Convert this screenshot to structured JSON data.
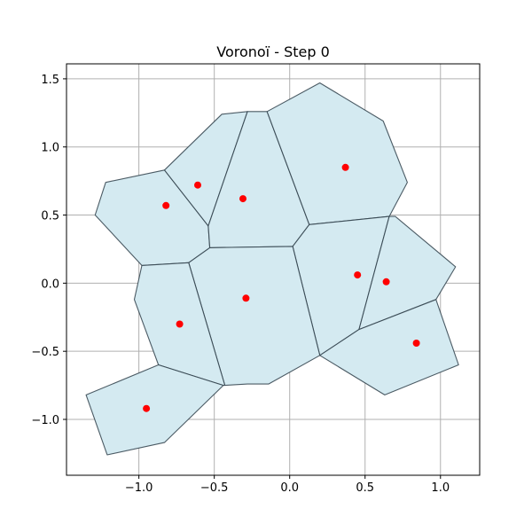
{
  "chart_data": {
    "type": "voronoi",
    "title": "Voronoï - Step 0",
    "xlabel": "",
    "ylabel": "",
    "xlim": [
      -1.48,
      1.26
    ],
    "ylim": [
      -1.41,
      1.61
    ],
    "xticks": [
      -1.0,
      -0.5,
      0.0,
      0.5,
      1.0
    ],
    "yticks": [
      -1.0,
      -0.5,
      0.0,
      0.5,
      1.0,
      1.5
    ],
    "xtick_labels": [
      "−1.0",
      "−0.5",
      "0.0",
      "0.5",
      "1.0"
    ],
    "ytick_labels": [
      "−1.0",
      "−0.5",
      "0.0",
      "0.5",
      "1.0",
      "1.5"
    ],
    "grid": true,
    "colors": {
      "cell_fill": "#d4eaf1",
      "cell_edge": "#2f3f4a",
      "outer_edge": "#6f7a80",
      "point": "#ff0000",
      "grid": "#b0b0b0",
      "axes": "#000000"
    },
    "points": [
      [
        -0.82,
        0.57
      ],
      [
        -0.61,
        0.72
      ],
      [
        -0.31,
        0.62
      ],
      [
        0.37,
        0.85
      ],
      [
        0.45,
        0.06
      ],
      [
        0.64,
        0.01
      ],
      [
        -0.29,
        -0.11
      ],
      [
        -0.73,
        -0.3
      ],
      [
        0.84,
        -0.44
      ],
      [
        -0.95,
        -0.92
      ]
    ],
    "cells": [
      [
        [
          -0.83,
          0.83
        ],
        [
          -1.22,
          0.74
        ],
        [
          -1.29,
          0.5
        ],
        [
          -0.98,
          0.13
        ],
        [
          -0.67,
          0.15
        ],
        [
          -0.53,
          0.26
        ],
        [
          -0.54,
          0.42
        ]
      ],
      [
        [
          -0.83,
          0.83
        ],
        [
          -0.54,
          0.42
        ],
        [
          -0.28,
          1.26
        ],
        [
          -0.45,
          1.24
        ]
      ],
      [
        [
          -0.28,
          1.26
        ],
        [
          -0.54,
          0.42
        ],
        [
          -0.53,
          0.26
        ],
        [
          0.02,
          0.27
        ],
        [
          0.13,
          0.43
        ],
        [
          -0.15,
          1.26
        ]
      ],
      [
        [
          -0.15,
          1.26
        ],
        [
          0.13,
          0.43
        ],
        [
          0.66,
          0.49
        ],
        [
          0.78,
          0.74
        ],
        [
          0.62,
          1.19
        ],
        [
          0.2,
          1.47
        ]
      ],
      [
        [
          0.13,
          0.43
        ],
        [
          0.02,
          0.27
        ],
        [
          0.2,
          -0.53
        ],
        [
          0.46,
          -0.34
        ],
        [
          0.66,
          0.49
        ]
      ],
      [
        [
          0.66,
          0.49
        ],
        [
          0.46,
          -0.34
        ],
        [
          0.97,
          -0.12
        ],
        [
          1.1,
          0.12
        ],
        [
          0.7,
          0.49
        ]
      ],
      [
        [
          -0.53,
          0.26
        ],
        [
          -0.67,
          0.15
        ],
        [
          -0.43,
          -0.75
        ],
        [
          -0.28,
          -0.74
        ],
        [
          -0.14,
          -0.74
        ],
        [
          0.2,
          -0.53
        ],
        [
          0.02,
          0.27
        ]
      ],
      [
        [
          -0.98,
          0.13
        ],
        [
          -0.67,
          0.15
        ],
        [
          -0.43,
          -0.75
        ],
        [
          -0.44,
          -0.75
        ],
        [
          -0.87,
          -0.6
        ],
        [
          -1.03,
          -0.12
        ]
      ],
      [
        [
          0.46,
          -0.34
        ],
        [
          0.97,
          -0.12
        ],
        [
          1.12,
          -0.6
        ],
        [
          0.63,
          -0.82
        ],
        [
          0.2,
          -0.53
        ]
      ],
      [
        [
          -0.87,
          -0.6
        ],
        [
          -0.44,
          -0.75
        ],
        [
          -0.83,
          -1.17
        ],
        [
          -1.21,
          -1.26
        ],
        [
          -1.35,
          -0.82
        ]
      ]
    ]
  }
}
